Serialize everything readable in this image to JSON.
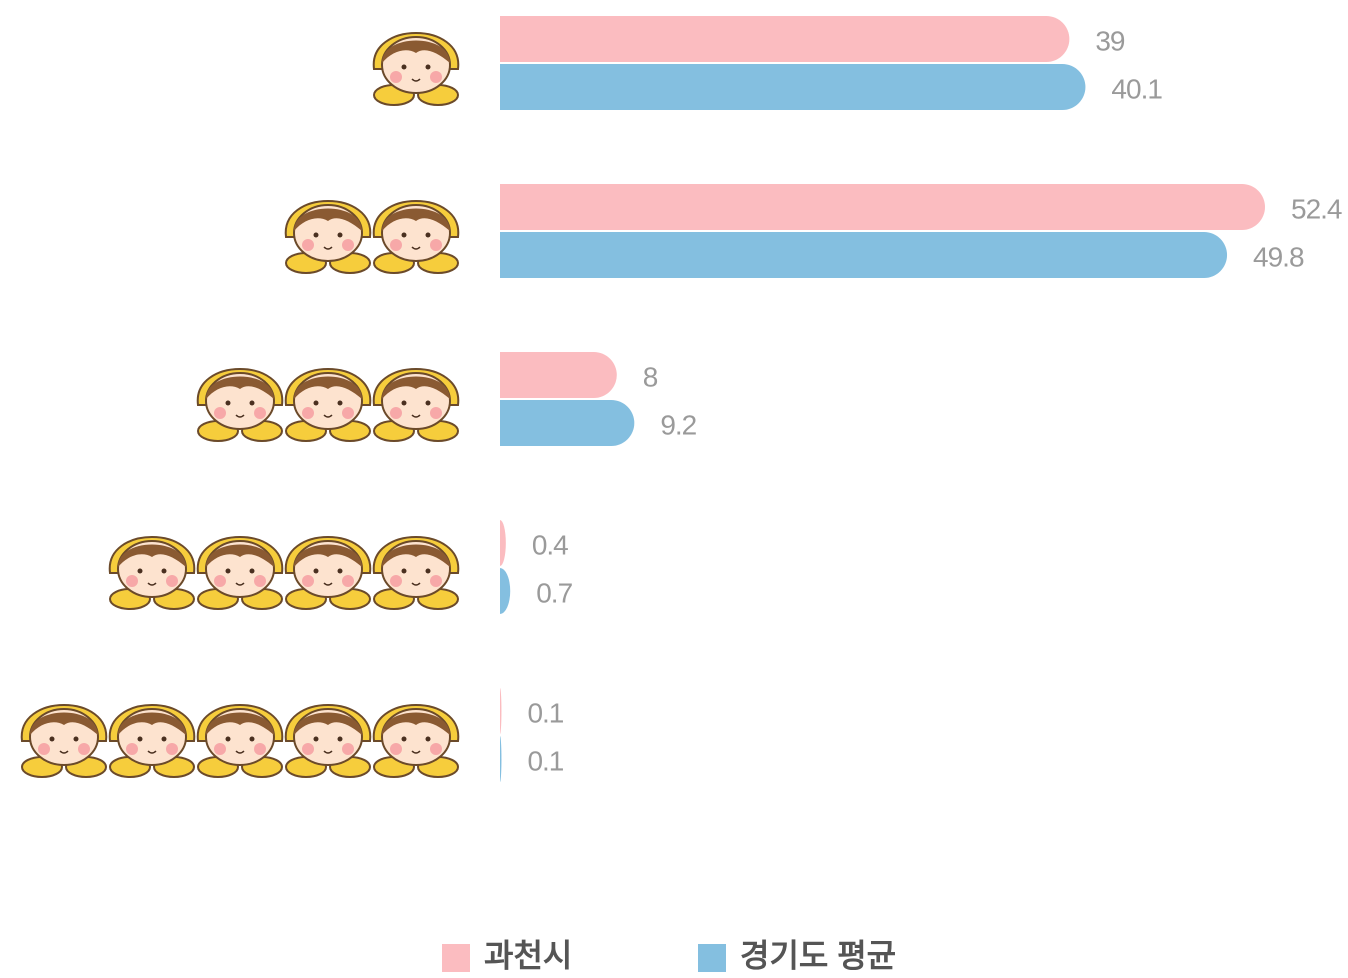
{
  "chart_data": {
    "type": "bar",
    "orientation": "horizontal",
    "categories": [
      null,
      null,
      null,
      null,
      null
    ],
    "series": [
      {
        "name": "과천시",
        "color": "#fbbcc0",
        "values": [
          39,
          52.4,
          8,
          0.4,
          0.1
        ]
      },
      {
        "name": "경기도 평균",
        "color": "#84bfe0",
        "values": [
          40.1,
          49.8,
          9.2,
          0.7,
          0.1
        ]
      }
    ],
    "legend": "bottom"
  }
}
